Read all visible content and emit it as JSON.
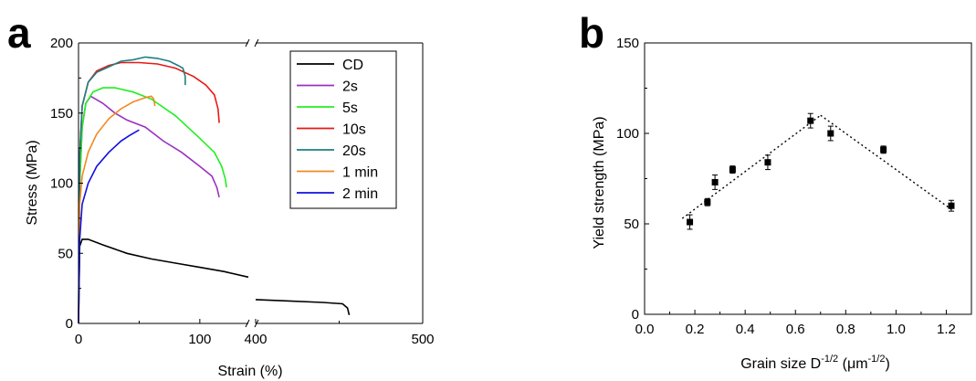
{
  "chart_data": [
    {
      "type": "line",
      "panel_label": "a",
      "xlabel": "Strain (%)",
      "ylabel": "Stress (MPa)",
      "ylim": [
        0,
        200
      ],
      "x_axis_broken": true,
      "x_segments": [
        [
          0,
          140
        ],
        [
          400,
          500
        ]
      ],
      "x_ticks": [
        "0",
        "100",
        "400",
        "500"
      ],
      "y_ticks": [
        "0",
        "50",
        "100",
        "150",
        "200"
      ],
      "legend_position": "top-right",
      "series": [
        {
          "name": "CD",
          "color": "#000000",
          "points": [
            [
              0,
              0
            ],
            [
              0.5,
              30
            ],
            [
              1,
              55
            ],
            [
              3,
              60
            ],
            [
              8,
              60
            ],
            [
              20,
              56
            ],
            [
              40,
              50
            ],
            [
              60,
              46
            ],
            [
              80,
              43
            ],
            [
              100,
              40
            ],
            [
              120,
              37
            ],
            [
              140,
              33
            ]
          ],
          "points_right": [
            [
              400,
              17
            ],
            [
              420,
              16
            ],
            [
              440,
              15
            ],
            [
              452,
              14
            ],
            [
              455,
              11
            ],
            [
              456,
              6
            ]
          ]
        },
        {
          "name": "2s",
          "color": "#9B30C0",
          "points": [
            [
              0,
              0
            ],
            [
              1,
              100
            ],
            [
              3,
              140
            ],
            [
              6,
              157
            ],
            [
              10,
              162
            ],
            [
              20,
              157
            ],
            [
              30,
              150
            ],
            [
              40,
              145
            ],
            [
              55,
              140
            ],
            [
              70,
              130
            ],
            [
              85,
              122
            ],
            [
              100,
              112
            ],
            [
              110,
              105
            ],
            [
              114,
              97
            ],
            [
              116,
              90
            ]
          ]
        },
        {
          "name": "5s",
          "color": "#22EE22",
          "points": [
            [
              0,
              0
            ],
            [
              1,
              100
            ],
            [
              3,
              140
            ],
            [
              6,
              157
            ],
            [
              12,
              165
            ],
            [
              20,
              168
            ],
            [
              30,
              168
            ],
            [
              45,
              165
            ],
            [
              60,
              160
            ],
            [
              80,
              148
            ],
            [
              100,
              132
            ],
            [
              112,
              122
            ],
            [
              118,
              112
            ],
            [
              121,
              103
            ],
            [
              122,
              97
            ]
          ]
        },
        {
          "name": "10s",
          "color": "#E81818",
          "points": [
            [
              0,
              0
            ],
            [
              1,
              120
            ],
            [
              3,
              155
            ],
            [
              8,
              172
            ],
            [
              15,
              180
            ],
            [
              25,
              184
            ],
            [
              35,
              186
            ],
            [
              50,
              186
            ],
            [
              65,
              185
            ],
            [
              80,
              182
            ],
            [
              95,
              176
            ],
            [
              105,
              170
            ],
            [
              112,
              163
            ],
            [
              115,
              153
            ],
            [
              116,
              143
            ]
          ]
        },
        {
          "name": "20s",
          "color": "#1E7F80",
          "points": [
            [
              0,
              0
            ],
            [
              1,
              120
            ],
            [
              3,
              155
            ],
            [
              8,
              172
            ],
            [
              15,
              179
            ],
            [
              25,
              183
            ],
            [
              35,
              187
            ],
            [
              45,
              188
            ],
            [
              55,
              190
            ],
            [
              65,
              189
            ],
            [
              75,
              187
            ],
            [
              82,
              184
            ],
            [
              86,
              182
            ],
            [
              88,
              176
            ],
            [
              88,
              170
            ]
          ]
        },
        {
          "name": "1 min",
          "color": "#F08A20",
          "points": [
            [
              0,
              0
            ],
            [
              1,
              85
            ],
            [
              3,
              105
            ],
            [
              8,
              122
            ],
            [
              15,
              135
            ],
            [
              25,
              146
            ],
            [
              35,
              153
            ],
            [
              45,
              158
            ],
            [
              55,
              161
            ],
            [
              60,
              162
            ],
            [
              62,
              160
            ],
            [
              63,
              155
            ]
          ]
        },
        {
          "name": "2 min",
          "color": "#1010E0",
          "points": [
            [
              0,
              0
            ],
            [
              1,
              60
            ],
            [
              3,
              85
            ],
            [
              8,
              100
            ],
            [
              15,
              112
            ],
            [
              25,
              122
            ],
            [
              35,
              130
            ],
            [
              42,
              134
            ],
            [
              48,
              137
            ],
            [
              50,
              138
            ]
          ]
        }
      ]
    },
    {
      "type": "scatter",
      "panel_label": "b",
      "xlabel_main": "Grain size D",
      "xlabel_exp": "-1/2",
      "xlabel_unit_open": " (",
      "xlabel_unit": "μm",
      "xlabel_unit_exp": "-1/2",
      "xlabel_unit_close": ")",
      "ylabel": "Yield strength (MPa)",
      "xlim": [
        0.0,
        1.3
      ],
      "ylim": [
        0,
        150
      ],
      "x_ticks": [
        "0.0",
        "0.2",
        "0.4",
        "0.6",
        "0.8",
        "1.0",
        "1.2"
      ],
      "y_ticks": [
        "0",
        "50",
        "100",
        "150"
      ],
      "points": [
        {
          "x": 0.18,
          "y": 51,
          "err": 4
        },
        {
          "x": 0.25,
          "y": 62,
          "err": 2
        },
        {
          "x": 0.28,
          "y": 73,
          "err": 4
        },
        {
          "x": 0.35,
          "y": 80,
          "err": 2
        },
        {
          "x": 0.49,
          "y": 84,
          "err": 4
        },
        {
          "x": 0.66,
          "y": 107,
          "err": 4
        },
        {
          "x": 0.74,
          "y": 100,
          "err": 4
        },
        {
          "x": 0.95,
          "y": 91,
          "err": 2
        },
        {
          "x": 1.22,
          "y": 60,
          "err": 3
        }
      ],
      "fit_lines": [
        [
          [
            0.15,
            53
          ],
          [
            0.7,
            110
          ]
        ],
        [
          [
            0.7,
            110
          ],
          [
            1.22,
            58
          ]
        ]
      ]
    }
  ]
}
